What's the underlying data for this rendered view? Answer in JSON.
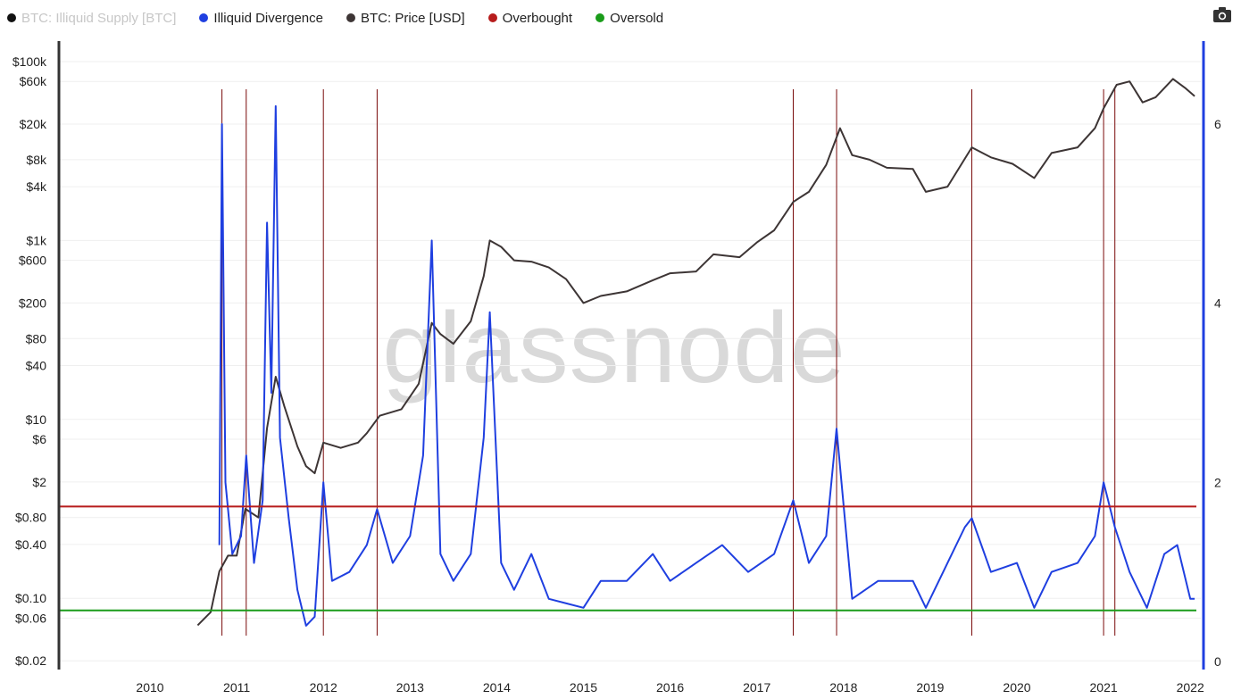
{
  "legend": [
    {
      "label": "BTC: Illiquid Supply [BTC]",
      "color": "#111111",
      "dim": true
    },
    {
      "label": "Illiquid Divergence",
      "color": "#1f3fe0",
      "dim": false
    },
    {
      "label": "BTC: Price [USD]",
      "color": "#3d3535",
      "dim": false
    },
    {
      "label": "Overbought",
      "color": "#b71c1c",
      "dim": false
    },
    {
      "label": "Oversold",
      "color": "#1a9c1a",
      "dim": false
    }
  ],
  "toolbar": {
    "camera_icon": "camera-icon"
  },
  "watermark": "glassnode",
  "chart_data": {
    "type": "line",
    "x_ticks": [
      "2010",
      "2011",
      "2012",
      "2013",
      "2014",
      "2015",
      "2016",
      "2017",
      "2018",
      "2019",
      "2020",
      "2021",
      "2022"
    ],
    "left_axis": {
      "scale": "log",
      "ticks": [
        "$100k",
        "$60k",
        "$20k",
        "$8k",
        "$4k",
        "$1k",
        "$600",
        "$200",
        "$80",
        "$40",
        "$10",
        "$6",
        "$2",
        "$0.80",
        "$0.40",
        "$0.10",
        "$0.06",
        "$0.02"
      ]
    },
    "right_axis": {
      "scale": "linear",
      "ticks": [
        "6",
        "4",
        "2",
        "0"
      ],
      "range": [
        0,
        6.6
      ]
    },
    "overbought_level": 1.73,
    "oversold_level": 0.57,
    "signal_dates": [
      2010.83,
      2011.11,
      2012.0,
      2012.62,
      2017.42,
      2017.92,
      2019.48,
      2021.0,
      2021.13
    ],
    "series": [
      {
        "name": "BTC: Price [USD]",
        "axis": "left",
        "color": "#3d3535",
        "points": [
          [
            2010.55,
            0.05
          ],
          [
            2010.7,
            0.07
          ],
          [
            2010.8,
            0.2
          ],
          [
            2010.9,
            0.3
          ],
          [
            2011.0,
            0.3
          ],
          [
            2011.1,
            1.0
          ],
          [
            2011.25,
            0.8
          ],
          [
            2011.35,
            8
          ],
          [
            2011.45,
            30
          ],
          [
            2011.55,
            14
          ],
          [
            2011.7,
            5
          ],
          [
            2011.8,
            3
          ],
          [
            2011.9,
            2.5
          ],
          [
            2012.0,
            5.5
          ],
          [
            2012.2,
            4.8
          ],
          [
            2012.4,
            5.5
          ],
          [
            2012.5,
            7
          ],
          [
            2012.65,
            11
          ],
          [
            2012.9,
            13
          ],
          [
            2013.1,
            25
          ],
          [
            2013.25,
            120
          ],
          [
            2013.35,
            90
          ],
          [
            2013.5,
            70
          ],
          [
            2013.7,
            125
          ],
          [
            2013.85,
            400
          ],
          [
            2013.92,
            1000
          ],
          [
            2014.05,
            850
          ],
          [
            2014.2,
            600
          ],
          [
            2014.4,
            580
          ],
          [
            2014.6,
            500
          ],
          [
            2014.8,
            370
          ],
          [
            2015.0,
            200
          ],
          [
            2015.2,
            240
          ],
          [
            2015.5,
            270
          ],
          [
            2015.8,
            360
          ],
          [
            2016.0,
            430
          ],
          [
            2016.3,
            450
          ],
          [
            2016.5,
            700
          ],
          [
            2016.8,
            650
          ],
          [
            2017.0,
            950
          ],
          [
            2017.2,
            1300
          ],
          [
            2017.42,
            2700
          ],
          [
            2017.6,
            3500
          ],
          [
            2017.8,
            7000
          ],
          [
            2017.96,
            18000
          ],
          [
            2018.1,
            9000
          ],
          [
            2018.3,
            8000
          ],
          [
            2018.5,
            6500
          ],
          [
            2018.8,
            6300
          ],
          [
            2018.95,
            3500
          ],
          [
            2019.2,
            4000
          ],
          [
            2019.48,
            11000
          ],
          [
            2019.7,
            8500
          ],
          [
            2019.95,
            7200
          ],
          [
            2020.2,
            5000
          ],
          [
            2020.4,
            9500
          ],
          [
            2020.7,
            11000
          ],
          [
            2020.9,
            18000
          ],
          [
            2021.0,
            30000
          ],
          [
            2021.15,
            55000
          ],
          [
            2021.3,
            60000
          ],
          [
            2021.45,
            35000
          ],
          [
            2021.6,
            40000
          ],
          [
            2021.8,
            64000
          ],
          [
            2021.95,
            50000
          ],
          [
            2022.05,
            41000
          ]
        ]
      },
      {
        "name": "Illiquid Divergence",
        "axis": "right",
        "color": "#1f3fe0",
        "points": [
          [
            2010.8,
            1.3
          ],
          [
            2010.83,
            6.0
          ],
          [
            2010.87,
            2.0
          ],
          [
            2010.95,
            1.2
          ],
          [
            2011.05,
            1.4
          ],
          [
            2011.11,
            2.3
          ],
          [
            2011.2,
            1.1
          ],
          [
            2011.3,
            1.8
          ],
          [
            2011.35,
            4.9
          ],
          [
            2011.4,
            3.0
          ],
          [
            2011.45,
            6.2
          ],
          [
            2011.5,
            2.5
          ],
          [
            2011.6,
            1.6
          ],
          [
            2011.7,
            0.8
          ],
          [
            2011.8,
            0.4
          ],
          [
            2011.9,
            0.5
          ],
          [
            2012.0,
            2.0
          ],
          [
            2012.1,
            0.9
          ],
          [
            2012.3,
            1.0
          ],
          [
            2012.5,
            1.3
          ],
          [
            2012.62,
            1.7
          ],
          [
            2012.8,
            1.1
          ],
          [
            2013.0,
            1.4
          ],
          [
            2013.15,
            2.3
          ],
          [
            2013.25,
            4.7
          ],
          [
            2013.35,
            1.2
          ],
          [
            2013.5,
            0.9
          ],
          [
            2013.7,
            1.2
          ],
          [
            2013.85,
            2.5
          ],
          [
            2013.92,
            3.9
          ],
          [
            2014.05,
            1.1
          ],
          [
            2014.2,
            0.8
          ],
          [
            2014.4,
            1.2
          ],
          [
            2014.6,
            0.7
          ],
          [
            2015.0,
            0.6
          ],
          [
            2015.2,
            0.9
          ],
          [
            2015.5,
            0.9
          ],
          [
            2015.8,
            1.2
          ],
          [
            2016.0,
            0.9
          ],
          [
            2016.3,
            1.1
          ],
          [
            2016.6,
            1.3
          ],
          [
            2016.9,
            1.0
          ],
          [
            2017.2,
            1.2
          ],
          [
            2017.42,
            1.8
          ],
          [
            2017.6,
            1.1
          ],
          [
            2017.8,
            1.4
          ],
          [
            2017.92,
            2.6
          ],
          [
            2018.1,
            0.7
          ],
          [
            2018.4,
            0.9
          ],
          [
            2018.8,
            0.9
          ],
          [
            2018.95,
            0.6
          ],
          [
            2019.2,
            1.1
          ],
          [
            2019.4,
            1.5
          ],
          [
            2019.48,
            1.6
          ],
          [
            2019.7,
            1.0
          ],
          [
            2020.0,
            1.1
          ],
          [
            2020.2,
            0.6
          ],
          [
            2020.4,
            1.0
          ],
          [
            2020.7,
            1.1
          ],
          [
            2020.9,
            1.4
          ],
          [
            2021.0,
            2.0
          ],
          [
            2021.13,
            1.5
          ],
          [
            2021.3,
            1.0
          ],
          [
            2021.5,
            0.6
          ],
          [
            2021.7,
            1.2
          ],
          [
            2021.85,
            1.3
          ],
          [
            2022.0,
            0.7
          ],
          [
            2022.05,
            0.7
          ]
        ]
      },
      {
        "name": "Overbought",
        "axis": "right",
        "color": "#b71c1c",
        "constant": 1.73
      },
      {
        "name": "Oversold",
        "axis": "right",
        "color": "#1a9c1a",
        "constant": 0.57
      }
    ]
  }
}
